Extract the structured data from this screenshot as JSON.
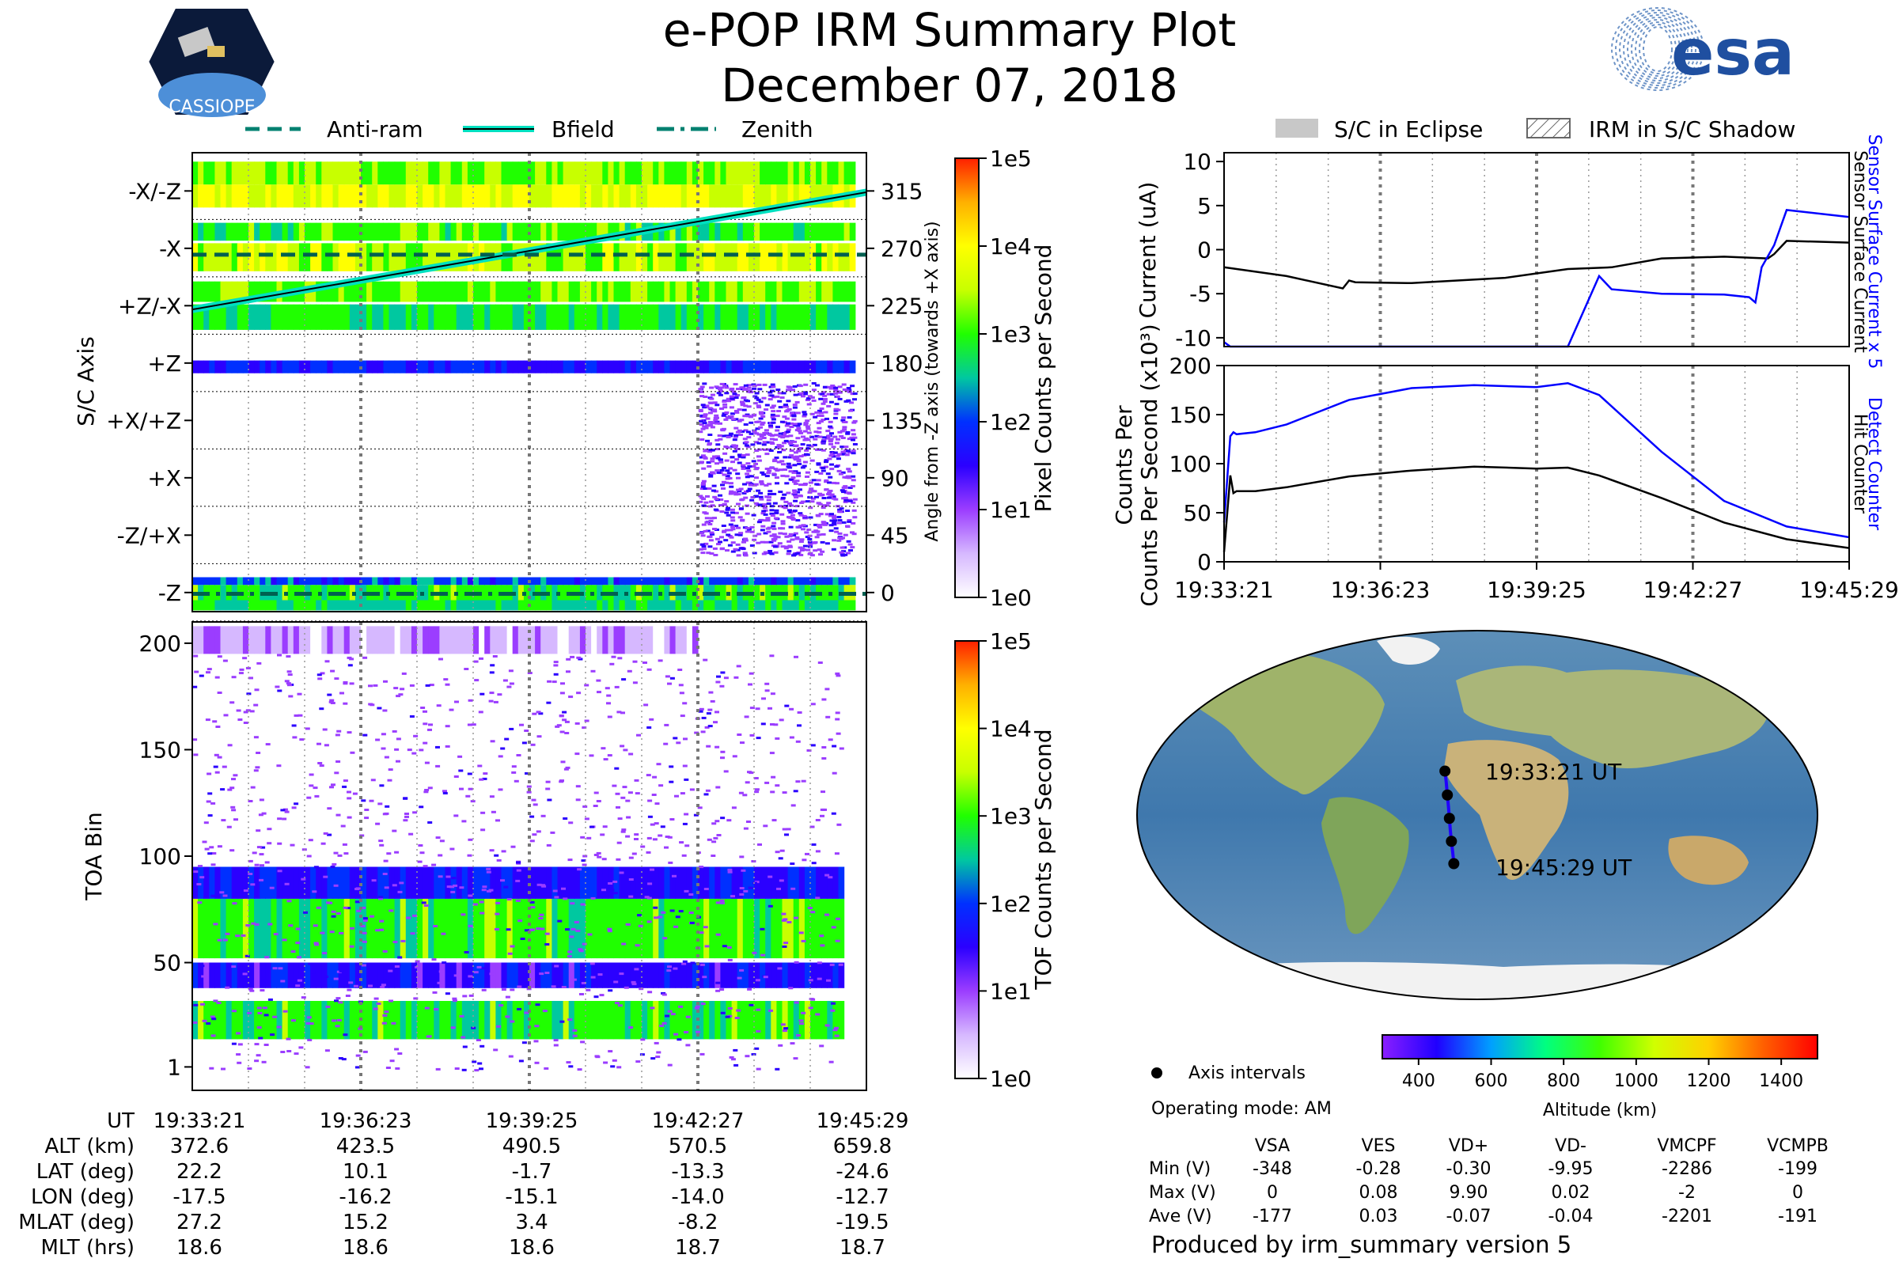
{
  "header": {
    "title": "e-POP IRM Summary Plot",
    "date": "December 07, 2018",
    "mission_logo_text": "CASSIOPE",
    "agency_logo_text": "esa"
  },
  "colors": {
    "cmap": [
      "#ffffff",
      "#d6b8ff",
      "#9b3dff",
      "#2b00ff",
      "#0030ff",
      "#00c8a0",
      "#20ff00",
      "#c8ff00",
      "#ffff00",
      "#ffb000",
      "#ff2000"
    ],
    "altitude_cmap": [
      "#8a1fff",
      "#2000ff",
      "#00a0ff",
      "#00ff80",
      "#40ff00",
      "#d0ff00",
      "#ffd000",
      "#ff6000",
      "#ff0000"
    ],
    "bfield": "#00e0c0",
    "sensor_blue": "#0000ff",
    "black": "#000000"
  },
  "chart_data": [
    {
      "id": "sc-axis",
      "type": "heatmap",
      "ylabel": "S/C Axis",
      "y_axis_labels": [
        "-X/-Z",
        "-X",
        "+Z/-X",
        "+Z",
        "+X/+Z",
        "+X",
        "-Z/+X",
        "-Z"
      ],
      "right_axis_label": "Angle from -Z axis (towards +X axis)",
      "right_ticks": [
        315,
        270,
        225,
        180,
        135,
        90,
        45,
        0
      ],
      "ylim": [
        -15,
        345
      ],
      "colorbar": {
        "label": "Pixel Counts per Second",
        "ticks": [
          "1e5",
          "1e4",
          "1e3",
          "1e2",
          "1e1",
          "1e0"
        ]
      },
      "legend": [
        "Anti-ram",
        "Bfield",
        "Zenith"
      ],
      "lines": {
        "bfield": {
          "x": [
            0,
            1
          ],
          "y": [
            222,
            314
          ]
        },
        "anti_ram": {
          "x": [
            0,
            1
          ],
          "y": [
            265,
            265
          ]
        },
        "zenith": {
          "x": [
            0,
            1
          ],
          "y": [
            -1,
            -1
          ]
        }
      },
      "bands": [
        {
          "y0": 320,
          "y1": 338,
          "start": 0.0,
          "end": 0.98,
          "level": 7.0
        },
        {
          "y0": 302,
          "y1": 320,
          "start": 0.0,
          "end": 0.98,
          "level": 8.0
        },
        {
          "y0": 276,
          "y1": 290,
          "start": 0.0,
          "end": 0.98,
          "level": 6.5
        },
        {
          "y0": 252,
          "y1": 274,
          "start": 0.0,
          "end": 0.98,
          "level": 7.5
        },
        {
          "y0": 228,
          "y1": 244,
          "start": 0.0,
          "end": 0.98,
          "level": 6.8
        },
        {
          "y0": 206,
          "y1": 226,
          "start": 0.0,
          "end": 0.98,
          "level": 6.2
        },
        {
          "y0": 172,
          "y1": 182,
          "start": 0.0,
          "end": 0.98,
          "level": 4.0
        },
        {
          "y0": -14,
          "y1": -6,
          "start": 0.0,
          "end": 0.98,
          "level": 5.8
        },
        {
          "y0": -6,
          "y1": 6,
          "start": 0.0,
          "end": 0.98,
          "level": 6.4
        },
        {
          "y0": 6,
          "y1": 12,
          "start": 0.0,
          "end": 0.98,
          "level": 4.5
        }
      ],
      "sparse": {
        "y0": 30,
        "y1": 165,
        "start": 0.75,
        "end": 0.98,
        "level": 2.2
      }
    },
    {
      "id": "toa",
      "type": "heatmap",
      "ylabel": "TOA Bin",
      "y_ticks": [
        200,
        150,
        100,
        50,
        1
      ],
      "ylim": [
        -10,
        210
      ],
      "colorbar": {
        "label": "TOF Counts per Second",
        "ticks": [
          "1e5",
          "1e4",
          "1e3",
          "1e2",
          "1e1",
          "1e0"
        ]
      },
      "bands": [
        {
          "y0": 52,
          "y1": 80,
          "start": 0.0,
          "end": 0.96,
          "level": 6.5
        },
        {
          "y0": 80,
          "y1": 95,
          "start": 0.0,
          "end": 0.96,
          "level": 3.8
        },
        {
          "y0": 38,
          "y1": 50,
          "start": 0.0,
          "end": 0.96,
          "level": 3.6
        },
        {
          "y0": 14,
          "y1": 32,
          "start": 0.0,
          "end": 0.96,
          "level": 6.3
        },
        {
          "y0": 195,
          "y1": 208,
          "start": 0.0,
          "end": 0.75,
          "level": 1.5
        }
      ],
      "sparse": {
        "y0": 0,
        "y1": 195,
        "start": 0.0,
        "end": 0.96,
        "level": 2.0
      }
    },
    {
      "id": "current",
      "type": "line",
      "ylabel": "Current (uA)",
      "right_labels": [
        "Sensor Surface Current x 5",
        "Sensor Surface Current"
      ],
      "ylim": [
        -11,
        11
      ],
      "y_ticks": [
        10,
        5,
        0,
        -5,
        -10
      ],
      "series": [
        {
          "name": "Sensor Surface Current",
          "color": "black",
          "x": [
            0,
            0.1,
            0.19,
            0.2,
            0.21,
            0.3,
            0.45,
            0.55,
            0.62,
            0.7,
            0.8,
            0.87,
            0.88,
            0.9,
            1.0
          ],
          "y": [
            -2.0,
            -3.0,
            -4.4,
            -3.5,
            -3.7,
            -3.8,
            -3.2,
            -2.2,
            -2.0,
            -1.0,
            -0.8,
            -1.0,
            -0.5,
            1.0,
            0.8
          ]
        },
        {
          "name": "Sensor Surface Current x 5",
          "color": "blue",
          "x": [
            0,
            0.01,
            0.52,
            0.55,
            0.6,
            0.62,
            0.7,
            0.8,
            0.84,
            0.85,
            0.86,
            0.88,
            0.9,
            1.0
          ],
          "y": [
            -10.5,
            -11,
            -11,
            -11,
            -3,
            -4.5,
            -5.0,
            -5.1,
            -5.4,
            -6.0,
            -2.0,
            0.5,
            4.5,
            3.7
          ]
        }
      ]
    },
    {
      "id": "counts",
      "type": "line",
      "ylabel": "Counts Per Second (x10³)",
      "right_labels": [
        "Detect Counter",
        "Hit Counter"
      ],
      "ylim": [
        0,
        200
      ],
      "y_ticks": [
        200,
        150,
        100,
        50,
        0
      ],
      "series": [
        {
          "name": "Detect Counter",
          "color": "blue",
          "x": [
            0,
            0.01,
            0.015,
            0.02,
            0.05,
            0.1,
            0.2,
            0.3,
            0.4,
            0.5,
            0.55,
            0.6,
            0.7,
            0.8,
            0.9,
            1.0
          ],
          "y": [
            40,
            128,
            132,
            130,
            132,
            140,
            165,
            177,
            180,
            178,
            182,
            170,
            112,
            62,
            36,
            25
          ]
        },
        {
          "name": "Hit Counter",
          "color": "black",
          "x": [
            0,
            0.01,
            0.015,
            0.02,
            0.05,
            0.1,
            0.2,
            0.3,
            0.4,
            0.5,
            0.55,
            0.6,
            0.7,
            0.8,
            0.9,
            1.0
          ],
          "y": [
            10,
            88,
            70,
            72,
            72,
            76,
            87,
            93,
            97,
            95,
            96,
            88,
            65,
            40,
            23,
            14
          ]
        }
      ],
      "x_tick_labels": [
        "19:33:21",
        "19:36:23",
        "19:39:25",
        "19:42:27",
        "19:45:29"
      ]
    }
  ],
  "legend_right": {
    "eclipse": "S/C in Eclipse",
    "shadow": "IRM in S/C Shadow"
  },
  "map": {
    "start_label": "19:33:21 UT",
    "end_label": "19:45:29 UT",
    "track": [
      [
        -17.5,
        22.2
      ],
      [
        -16.8,
        16.5
      ],
      [
        -16.2,
        10.1
      ],
      [
        -15.6,
        4.2
      ],
      [
        -15.1,
        -1.7
      ],
      [
        -14.6,
        -7.5
      ],
      [
        -14.0,
        -13.3
      ],
      [
        -13.3,
        -19.0
      ],
      [
        -12.7,
        -24.6
      ]
    ],
    "points": [
      [
        -17.5,
        22.2
      ],
      [
        -16.2,
        10.1
      ],
      [
        -15.1,
        -1.7
      ],
      [
        -14.0,
        -13.3
      ],
      [
        -12.7,
        -24.6
      ]
    ],
    "legend_text": "Axis intervals",
    "operating_mode": "Operating mode: AM"
  },
  "altitude_colorbar": {
    "label": "Altitude (km)",
    "ticks": [
      "400",
      "600",
      "800",
      "1000",
      "1200",
      "1400"
    ]
  },
  "bottom_table": {
    "row_headers": [
      "UT",
      "ALT (km)",
      "LAT (deg)",
      "LON (deg)",
      "MLAT (deg)",
      "MLT (hrs)"
    ],
    "columns": [
      [
        "19:33:21",
        "372.6",
        "22.2",
        "-17.5",
        "27.2",
        "18.6"
      ],
      [
        "19:36:23",
        "423.5",
        "10.1",
        "-16.2",
        "15.2",
        "18.6"
      ],
      [
        "19:39:25",
        "490.5",
        "-1.7",
        "-15.1",
        "3.4",
        "18.6"
      ],
      [
        "19:42:27",
        "570.5",
        "-13.3",
        "-14.0",
        "-8.2",
        "18.7"
      ],
      [
        "19:45:29",
        "659.8",
        "-24.6",
        "-12.7",
        "-19.5",
        "18.7"
      ]
    ]
  },
  "voltage_table": {
    "headers": [
      "VSA",
      "VES",
      "VD+",
      "VD-",
      "VMCPF",
      "VCMPB"
    ],
    "rows": [
      {
        "label": "Min (V)",
        "values": [
          "-348",
          "-0.28",
          "-0.30",
          "-9.95",
          "-2286",
          "-199"
        ]
      },
      {
        "label": "Max (V)",
        "values": [
          "0",
          "0.08",
          "9.90",
          "0.02",
          "-2",
          "0"
        ]
      },
      {
        "label": "Ave (V)",
        "values": [
          "-177",
          "0.03",
          "-0.07",
          "-0.04",
          "-2201",
          "-191"
        ]
      }
    ]
  },
  "footer": "Produced by irm_summary version 5"
}
